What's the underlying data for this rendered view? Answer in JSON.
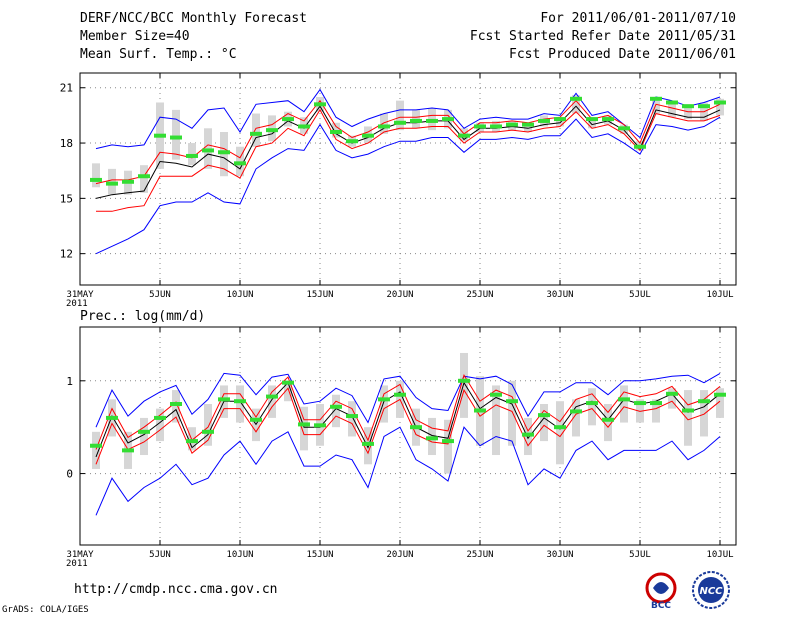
{
  "header": {
    "title": "DERF/NCC/BCC Monthly Forecast",
    "member": "Member Size=40",
    "variable": "Mean Surf. Temp.: °C",
    "period": "For 2011/06/01-2011/07/10",
    "refer": "Fcst Started Refer Date 2011/05/31",
    "produced": "Fcst Produced Date 2011/06/01"
  },
  "footer": {
    "url": "http://cmdp.ncc.cma.gov.cn",
    "credit": "GrADS: COLA/IGES",
    "logo_bcc": "BCC",
    "logo_ncc": "NCC"
  },
  "colors": {
    "ensemble_mean": "#000000",
    "spread_bounds": "#ff0000",
    "extreme_bounds": "#0000ff",
    "median_marker": "#33dd33",
    "box": "#d6d6d6"
  },
  "chart_data": [
    {
      "type": "box-line",
      "title": "",
      "ylabel": "Mean Surf. Temp.: °C",
      "x_tick_labels": [
        "31MAY\n2011",
        "5JUN",
        "10JUN",
        "15JUN",
        "20JUN",
        "25JUN",
        "30JUN",
        "5JUL",
        "10JUL"
      ],
      "x_tick_days": [
        0,
        5,
        10,
        15,
        20,
        25,
        30,
        35,
        40
      ],
      "xlim": [
        0,
        41
      ],
      "ylim": [
        10.3,
        21.8
      ],
      "y_ticks": [
        12,
        15,
        18,
        21
      ],
      "days": [
        1,
        2,
        3,
        4,
        5,
        6,
        7,
        8,
        9,
        10,
        11,
        12,
        13,
        14,
        15,
        16,
        17,
        18,
        19,
        20,
        21,
        22,
        23,
        24,
        25,
        26,
        27,
        28,
        29,
        30,
        31,
        32,
        33,
        34,
        35,
        36,
        37,
        38,
        39,
        40
      ],
      "series": [
        {
          "name": "mean",
          "values": [
            15.0,
            15.2,
            15.3,
            15.4,
            17.0,
            16.9,
            16.7,
            17.4,
            17.2,
            16.6,
            18.3,
            18.5,
            19.2,
            18.8,
            20.0,
            18.5,
            18.0,
            18.3,
            18.8,
            19.1,
            19.1,
            19.2,
            19.2,
            18.2,
            18.8,
            18.8,
            18.9,
            18.8,
            19.0,
            19.1,
            20.0,
            19.0,
            19.2,
            18.7,
            17.7,
            19.8,
            19.6,
            19.4,
            19.4,
            19.8
          ]
        },
        {
          "name": "upper",
          "values": [
            15.8,
            16.0,
            16.0,
            16.2,
            17.5,
            17.4,
            17.2,
            17.9,
            17.7,
            17.2,
            18.8,
            19.0,
            19.6,
            19.2,
            20.3,
            18.9,
            18.3,
            18.6,
            19.1,
            19.4,
            19.4,
            19.5,
            19.5,
            18.5,
            19.1,
            19.1,
            19.2,
            19.1,
            19.3,
            19.4,
            20.3,
            19.3,
            19.5,
            19.0,
            18.0,
            20.1,
            19.9,
            19.7,
            19.7,
            20.1
          ]
        },
        {
          "name": "lower",
          "values": [
            14.3,
            14.3,
            14.5,
            14.6,
            16.2,
            16.2,
            16.2,
            16.8,
            16.6,
            16.1,
            17.8,
            18.0,
            18.8,
            18.4,
            19.8,
            18.2,
            17.7,
            18.0,
            18.6,
            18.8,
            18.8,
            18.9,
            18.9,
            18.0,
            18.6,
            18.6,
            18.7,
            18.6,
            18.8,
            18.9,
            19.7,
            18.8,
            19.0,
            18.5,
            17.6,
            19.6,
            19.4,
            19.2,
            19.2,
            19.5
          ]
        },
        {
          "name": "max",
          "values": [
            17.7,
            17.9,
            17.8,
            17.9,
            19.4,
            19.3,
            18.8,
            19.8,
            19.9,
            18.6,
            20.1,
            20.2,
            20.3,
            19.7,
            20.9,
            19.4,
            18.9,
            19.3,
            19.6,
            19.8,
            19.8,
            19.9,
            19.8,
            18.8,
            19.3,
            19.4,
            19.3,
            19.3,
            19.6,
            19.5,
            20.7,
            19.5,
            19.7,
            19.0,
            18.3,
            20.5,
            20.3,
            20.0,
            20.2,
            20.5
          ]
        },
        {
          "name": "min",
          "values": [
            12.0,
            12.4,
            12.8,
            13.3,
            14.6,
            14.8,
            14.8,
            15.3,
            14.8,
            14.7,
            16.6,
            17.2,
            17.7,
            17.6,
            19.0,
            17.6,
            17.2,
            17.4,
            17.8,
            18.1,
            18.1,
            18.3,
            18.3,
            17.5,
            18.2,
            18.2,
            18.3,
            18.2,
            18.4,
            18.4,
            19.3,
            18.3,
            18.5,
            18.0,
            17.4,
            19.0,
            18.9,
            18.7,
            18.9,
            19.4
          ]
        },
        {
          "name": "median",
          "values": [
            16.0,
            15.8,
            15.9,
            16.2,
            18.4,
            18.3,
            17.3,
            17.6,
            17.5,
            16.9,
            18.5,
            18.7,
            19.3,
            18.9,
            20.1,
            18.6,
            18.1,
            18.4,
            18.9,
            19.1,
            19.2,
            19.2,
            19.3,
            18.4,
            18.9,
            18.9,
            19.0,
            19.0,
            19.2,
            19.3,
            20.4,
            19.3,
            19.3,
            18.8,
            17.8,
            20.4,
            20.2,
            20.0,
            20.0,
            20.2
          ]
        },
        {
          "name": "box_high",
          "values": [
            16.9,
            16.6,
            16.5,
            16.8,
            20.2,
            19.8,
            18.0,
            18.8,
            18.6,
            17.8,
            19.6,
            19.5,
            19.7,
            19.4,
            20.5,
            19.1,
            18.4,
            18.9,
            19.6,
            20.3,
            19.8,
            19.9,
            19.8,
            18.8,
            19.1,
            19.2,
            19.2,
            19.1,
            19.5,
            19.4,
            20.6,
            19.4,
            19.5,
            19.0,
            18.1,
            20.5,
            20.3,
            20.1,
            20.2,
            20.4
          ]
        },
        {
          "name": "box_low",
          "values": [
            15.6,
            15.2,
            15.2,
            15.3,
            16.6,
            17.1,
            16.8,
            16.6,
            16.2,
            16.2,
            17.8,
            18.1,
            18.9,
            18.5,
            19.7,
            18.3,
            17.8,
            18.0,
            18.5,
            18.7,
            18.8,
            18.7,
            18.8,
            18.1,
            18.6,
            18.6,
            18.7,
            18.6,
            18.9,
            18.9,
            19.6,
            18.8,
            19.0,
            18.5,
            17.6,
            19.6,
            19.4,
            19.3,
            19.2,
            19.5
          ]
        }
      ]
    },
    {
      "type": "box-line",
      "title": "Prec.: log(mm/d)",
      "ylabel": "Prec.: log(mm/d)",
      "x_tick_labels": [
        "31MAY\n2011",
        "5JUN",
        "10JUN",
        "15JUN",
        "20JUN",
        "25JUN",
        "30JUN",
        "5JUL",
        "10JUL"
      ],
      "x_tick_days": [
        0,
        5,
        10,
        15,
        20,
        25,
        30,
        35,
        40
      ],
      "xlim": [
        0,
        41
      ],
      "ylim": [
        -0.77,
        1.58
      ],
      "y_ticks": [
        0,
        1
      ],
      "days": [
        1,
        2,
        3,
        4,
        5,
        6,
        7,
        8,
        9,
        10,
        11,
        12,
        13,
        14,
        15,
        16,
        17,
        18,
        19,
        20,
        21,
        22,
        23,
        24,
        25,
        26,
        27,
        28,
        29,
        30,
        31,
        32,
        33,
        34,
        35,
        36,
        37,
        38,
        39,
        40
      ],
      "series": [
        {
          "name": "mean",
          "values": [
            0.18,
            0.62,
            0.33,
            0.42,
            0.55,
            0.69,
            0.28,
            0.42,
            0.78,
            0.78,
            0.53,
            0.8,
            0.98,
            0.5,
            0.5,
            0.7,
            0.62,
            0.28,
            0.78,
            0.88,
            0.5,
            0.41,
            0.38,
            0.98,
            0.7,
            0.82,
            0.75,
            0.38,
            0.6,
            0.48,
            0.72,
            0.78,
            0.58,
            0.8,
            0.75,
            0.78,
            0.86,
            0.66,
            0.72,
            0.86
          ]
        },
        {
          "name": "upper",
          "values": [
            0.26,
            0.7,
            0.39,
            0.5,
            0.63,
            0.77,
            0.36,
            0.5,
            0.86,
            0.86,
            0.61,
            0.88,
            1.04,
            0.58,
            0.58,
            0.78,
            0.7,
            0.36,
            0.86,
            0.96,
            0.58,
            0.49,
            0.46,
            1.06,
            0.78,
            0.9,
            0.83,
            0.46,
            0.68,
            0.56,
            0.8,
            0.86,
            0.66,
            0.88,
            0.83,
            0.86,
            0.94,
            0.74,
            0.8,
            0.94
          ]
        },
        {
          "name": "lower",
          "values": [
            0.1,
            0.54,
            0.26,
            0.34,
            0.47,
            0.61,
            0.22,
            0.36,
            0.7,
            0.7,
            0.45,
            0.72,
            0.92,
            0.42,
            0.42,
            0.62,
            0.54,
            0.22,
            0.7,
            0.8,
            0.42,
            0.34,
            0.32,
            0.9,
            0.62,
            0.74,
            0.67,
            0.3,
            0.52,
            0.4,
            0.64,
            0.7,
            0.5,
            0.72,
            0.67,
            0.7,
            0.78,
            0.58,
            0.64,
            0.78
          ]
        },
        {
          "name": "max",
          "values": [
            0.5,
            0.9,
            0.62,
            0.78,
            0.88,
            0.95,
            0.64,
            0.8,
            1.08,
            1.06,
            0.85,
            1.04,
            1.07,
            0.75,
            0.78,
            0.92,
            0.84,
            0.55,
            1.02,
            1.05,
            0.82,
            0.7,
            0.68,
            1.05,
            1.02,
            1.05,
            0.96,
            0.62,
            0.88,
            0.88,
            0.98,
            0.98,
            0.85,
            1.0,
            1.0,
            1.02,
            1.05,
            1.06,
            0.98,
            1.08
          ]
        },
        {
          "name": "min",
          "values": [
            -0.45,
            -0.05,
            -0.3,
            -0.15,
            -0.05,
            0.1,
            -0.12,
            -0.05,
            0.2,
            0.35,
            0.1,
            0.35,
            0.45,
            0.08,
            0.08,
            0.2,
            0.15,
            -0.15,
            0.4,
            0.5,
            0.15,
            0.05,
            -0.08,
            0.5,
            0.3,
            0.4,
            0.35,
            -0.12,
            0.05,
            -0.05,
            0.25,
            0.35,
            0.15,
            0.25,
            0.25,
            0.25,
            0.35,
            0.15,
            0.25,
            0.4
          ]
        },
        {
          "name": "median",
          "values": [
            0.3,
            0.6,
            0.25,
            0.45,
            0.6,
            0.75,
            0.35,
            0.45,
            0.8,
            0.78,
            0.58,
            0.83,
            0.98,
            0.53,
            0.52,
            0.72,
            0.62,
            0.32,
            0.8,
            0.85,
            0.5,
            0.38,
            0.35,
            1.0,
            0.68,
            0.85,
            0.78,
            0.42,
            0.63,
            0.5,
            0.67,
            0.76,
            0.58,
            0.8,
            0.76,
            0.76,
            0.86,
            0.68,
            0.78,
            0.85
          ]
        },
        {
          "name": "box_high",
          "values": [
            0.45,
            0.8,
            0.45,
            0.6,
            0.7,
            0.9,
            0.5,
            0.75,
            0.95,
            0.95,
            0.7,
            0.95,
            1.0,
            0.72,
            0.75,
            0.85,
            0.78,
            0.5,
            0.95,
            1.0,
            0.7,
            0.6,
            0.58,
            1.3,
            1.05,
            0.95,
            1.0,
            0.6,
            0.75,
            0.78,
            0.8,
            0.92,
            0.75,
            0.95,
            0.8,
            0.8,
            0.92,
            0.9,
            0.9,
            0.92
          ]
        },
        {
          "name": "box_low",
          "values": [
            0.05,
            0.4,
            0.05,
            0.2,
            0.35,
            0.55,
            0.25,
            0.3,
            0.6,
            0.55,
            0.35,
            0.6,
            0.78,
            0.25,
            0.3,
            0.5,
            0.4,
            0.1,
            0.55,
            0.6,
            0.3,
            0.2,
            0.0,
            0.6,
            0.3,
            0.2,
            0.3,
            0.2,
            0.35,
            0.1,
            0.4,
            0.52,
            0.35,
            0.55,
            0.55,
            0.55,
            0.7,
            0.3,
            0.4,
            0.6
          ]
        }
      ]
    }
  ]
}
